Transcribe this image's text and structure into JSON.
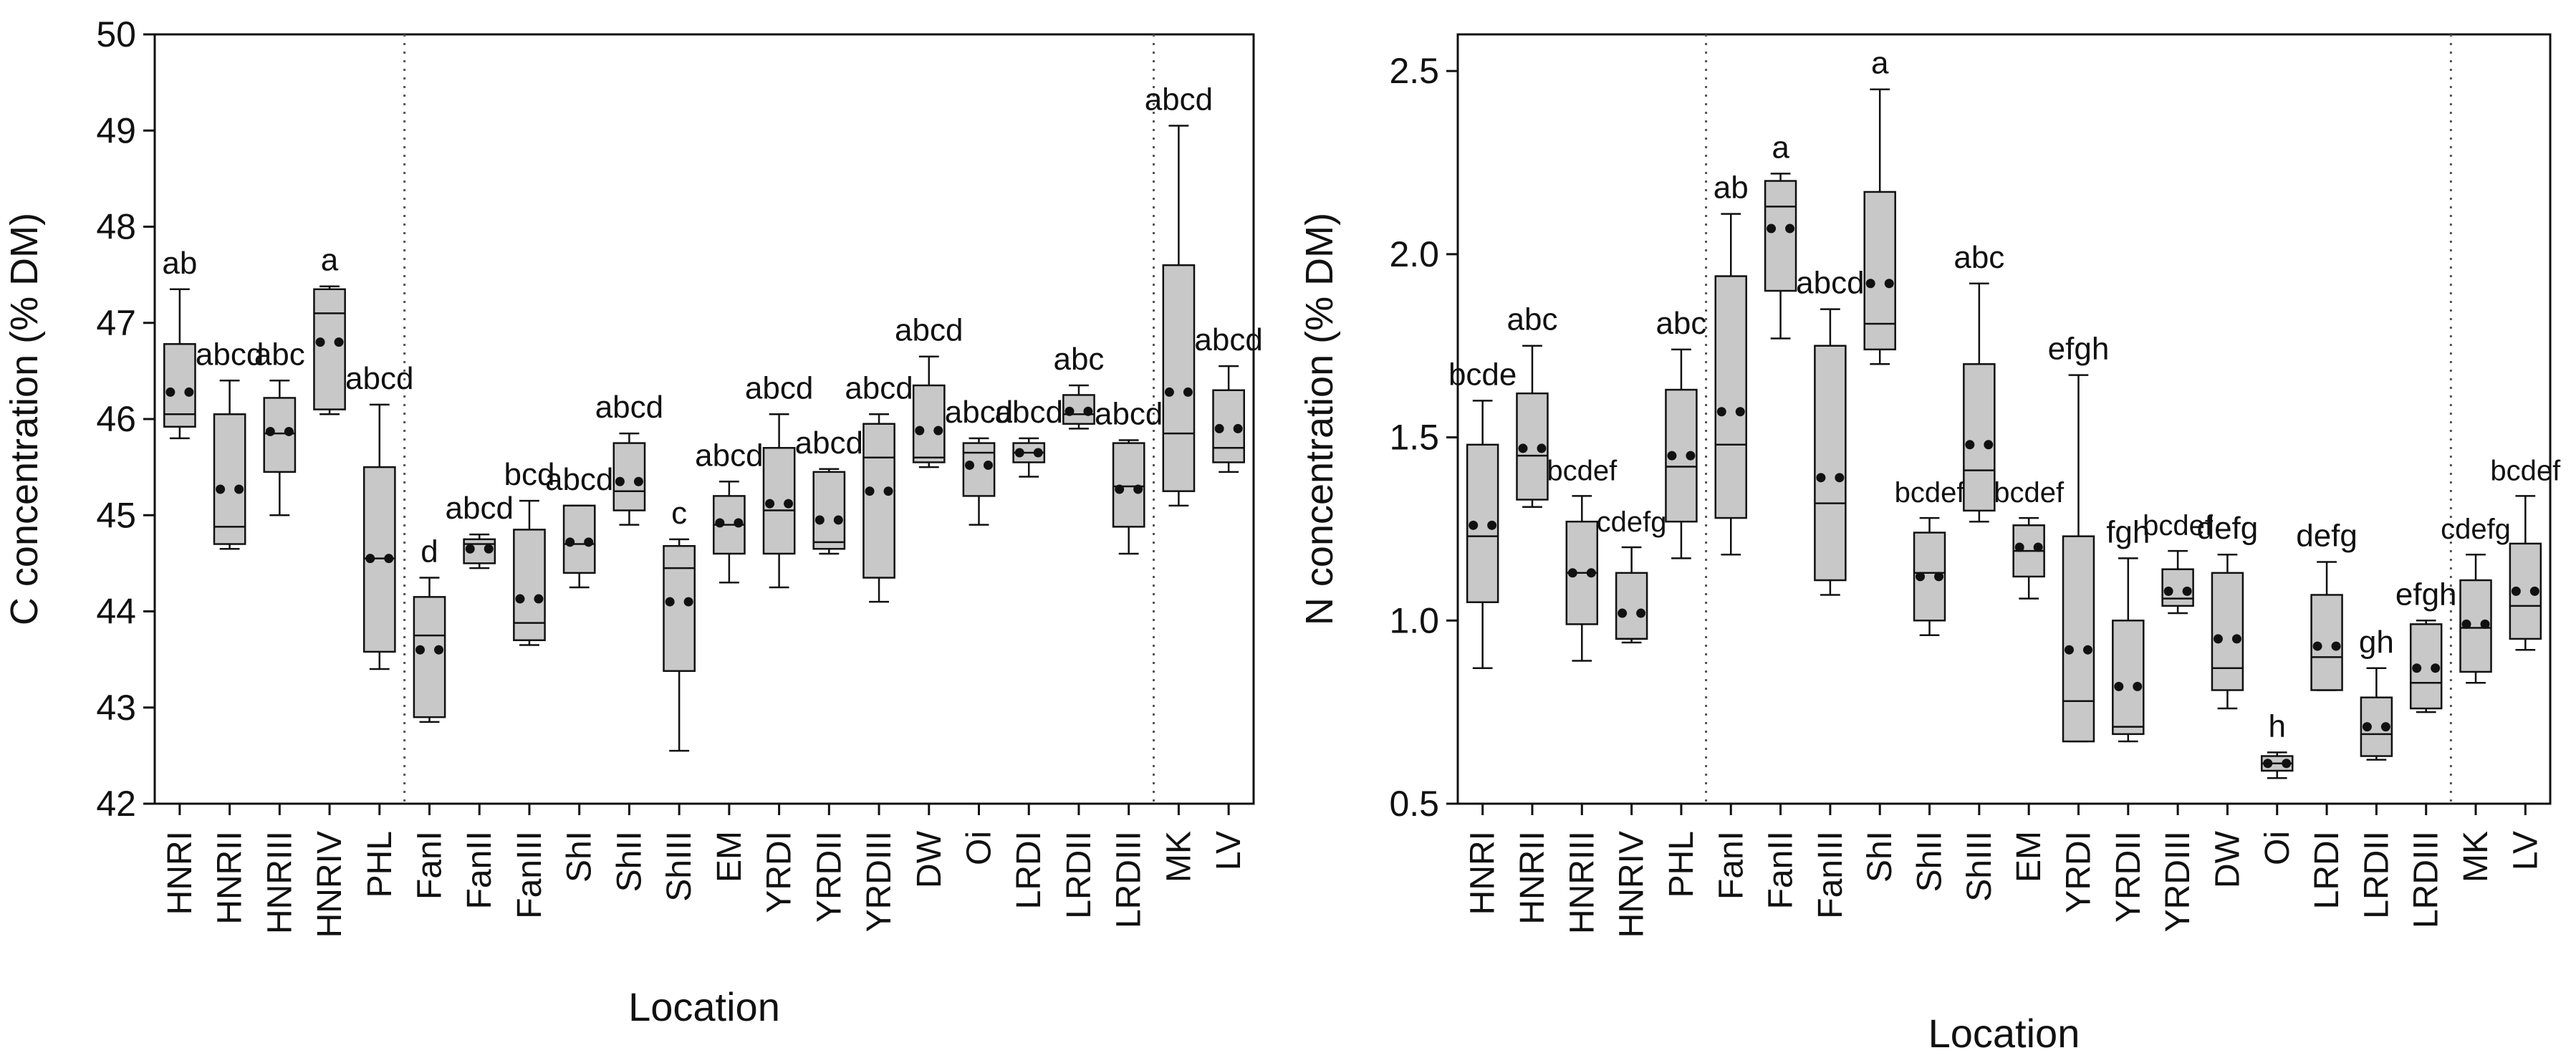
{
  "style": {
    "box_fill": "#c8c8c8",
    "line_color": "#111111",
    "divider_color": "#555555"
  },
  "chart_data": [
    {
      "type": "box",
      "title": "",
      "xlabel": "Location",
      "ylabel": "C concentration (% DM)",
      "ylim": [
        42,
        50
      ],
      "yticks": [
        "42",
        "43",
        "44",
        "45",
        "46",
        "47",
        "48",
        "49",
        "50"
      ],
      "divider_after": [
        5,
        20
      ],
      "categories": [
        "HNRI",
        "HNRII",
        "HNRIII",
        "HNRIV",
        "PHL",
        "FanI",
        "FanII",
        "FanIII",
        "ShI",
        "ShII",
        "ShIII",
        "EM",
        "YRDI",
        "YRDII",
        "YRDIII",
        "DW",
        "Oi",
        "LRDI",
        "LRDII",
        "LRDIII",
        "MK",
        "LV"
      ],
      "letters": [
        "ab",
        "abcd",
        "abc",
        "a",
        "abcd",
        "d",
        "abcd",
        "bcd",
        "abcd",
        "abcd",
        "c",
        "abcd",
        "abcd",
        "abcd",
        "abcd",
        "abcd",
        "abcd",
        "abcd",
        "abc",
        "abcd",
        "abcd",
        "abcd"
      ],
      "boxes": [
        {
          "min": 45.8,
          "q1": 45.92,
          "median": 46.05,
          "q3": 46.78,
          "max": 47.35,
          "mean": 46.28
        },
        {
          "min": 44.65,
          "q1": 44.7,
          "median": 44.88,
          "q3": 46.05,
          "max": 46.4,
          "mean": 45.27
        },
        {
          "min": 45.0,
          "q1": 45.45,
          "median": 45.85,
          "q3": 46.22,
          "max": 46.4,
          "mean": 45.87
        },
        {
          "min": 46.05,
          "q1": 46.1,
          "median": 47.1,
          "q3": 47.35,
          "max": 47.38,
          "mean": 46.8
        },
        {
          "min": 43.4,
          "q1": 43.58,
          "median": 44.55,
          "q3": 45.5,
          "max": 46.15,
          "mean": 44.55
        },
        {
          "min": 42.85,
          "q1": 42.9,
          "median": 43.75,
          "q3": 44.15,
          "max": 44.35,
          "mean": 43.6
        },
        {
          "min": 44.45,
          "q1": 44.5,
          "median": 44.7,
          "q3": 44.75,
          "max": 44.8,
          "mean": 44.65
        },
        {
          "min": 43.65,
          "q1": 43.7,
          "median": 43.88,
          "q3": 44.85,
          "max": 45.15,
          "mean": 44.13
        },
        {
          "min": 44.25,
          "q1": 44.4,
          "median": 44.7,
          "q3": 45.1,
          "max": 45.1,
          "mean": 44.72
        },
        {
          "min": 44.9,
          "q1": 45.05,
          "median": 45.25,
          "q3": 45.75,
          "max": 45.85,
          "mean": 45.35
        },
        {
          "min": 42.55,
          "q1": 43.38,
          "median": 44.45,
          "q3": 44.68,
          "max": 44.75,
          "mean": 44.1
        },
        {
          "min": 44.3,
          "q1": 44.6,
          "median": 44.9,
          "q3": 45.2,
          "max": 45.35,
          "mean": 44.92
        },
        {
          "min": 44.25,
          "q1": 44.6,
          "median": 45.05,
          "q3": 45.7,
          "max": 46.05,
          "mean": 45.12
        },
        {
          "min": 44.6,
          "q1": 44.65,
          "median": 44.72,
          "q3": 45.45,
          "max": 45.48,
          "mean": 44.95
        },
        {
          "min": 44.1,
          "q1": 44.35,
          "median": 45.6,
          "q3": 45.95,
          "max": 46.05,
          "mean": 45.25
        },
        {
          "min": 45.5,
          "q1": 45.55,
          "median": 45.6,
          "q3": 46.35,
          "max": 46.65,
          "mean": 45.88
        },
        {
          "min": 44.9,
          "q1": 45.2,
          "median": 45.65,
          "q3": 45.75,
          "max": 45.8,
          "mean": 45.52
        },
        {
          "min": 45.4,
          "q1": 45.55,
          "median": 45.65,
          "q3": 45.75,
          "max": 45.8,
          "mean": 45.65
        },
        {
          "min": 45.9,
          "q1": 45.95,
          "median": 46.05,
          "q3": 46.25,
          "max": 46.35,
          "mean": 46.08
        },
        {
          "min": 44.6,
          "q1": 44.88,
          "median": 45.3,
          "q3": 45.75,
          "max": 45.78,
          "mean": 45.27
        },
        {
          "min": 45.1,
          "q1": 45.25,
          "median": 45.85,
          "q3": 47.6,
          "max": 49.05,
          "mean": 46.28
        },
        {
          "min": 45.45,
          "q1": 45.55,
          "median": 45.7,
          "q3": 46.3,
          "max": 46.55,
          "mean": 45.9
        }
      ]
    },
    {
      "type": "box",
      "title": "",
      "xlabel": "Location",
      "ylabel": "N concentration (% DM)",
      "ylim": [
        0.5,
        2.6
      ],
      "yticks": [
        "0.5",
        "1.0",
        "1.5",
        "2.0",
        "2.5"
      ],
      "divider_after": [
        5,
        20
      ],
      "categories": [
        "HNRI",
        "HNRII",
        "HNRIII",
        "HNRIV",
        "PHL",
        "FanI",
        "FanII",
        "FanIII",
        "ShI",
        "ShII",
        "ShIII",
        "EM",
        "YRDI",
        "YRDII",
        "YRDIII",
        "DW",
        "Oi",
        "LRDI",
        "LRDII",
        "LRDIII",
        "MK",
        "LV"
      ],
      "letters": [
        "bcde",
        "abc",
        "bcdef",
        "cdefg",
        "abc",
        "ab",
        "a",
        "abcd",
        "a",
        "bcdef",
        "abc",
        "bcdef",
        "efgh",
        "fgh",
        "bcdef",
        "defg",
        "h",
        "defg",
        "gh",
        "efgh",
        "cdefg",
        "bcdef"
      ],
      "boxes": [
        {
          "min": 0.87,
          "q1": 1.05,
          "median": 1.23,
          "q3": 1.48,
          "max": 1.6,
          "mean": 1.26
        },
        {
          "min": 1.31,
          "q1": 1.33,
          "median": 1.45,
          "q3": 1.62,
          "max": 1.75,
          "mean": 1.47
        },
        {
          "min": 0.89,
          "q1": 0.99,
          "median": 1.13,
          "q3": 1.27,
          "max": 1.34,
          "mean": 1.13
        },
        {
          "min": 0.94,
          "q1": 0.95,
          "median": 0.95,
          "q3": 1.13,
          "max": 1.2,
          "mean": 1.02
        },
        {
          "min": 1.17,
          "q1": 1.27,
          "median": 1.42,
          "q3": 1.63,
          "max": 1.74,
          "mean": 1.45
        },
        {
          "min": 1.18,
          "q1": 1.28,
          "median": 1.48,
          "q3": 1.94,
          "max": 2.11,
          "mean": 1.57
        },
        {
          "min": 1.77,
          "q1": 1.9,
          "median": 2.13,
          "q3": 2.2,
          "max": 2.22,
          "mean": 2.07
        },
        {
          "min": 1.07,
          "q1": 1.11,
          "median": 1.32,
          "q3": 1.75,
          "max": 1.85,
          "mean": 1.39
        },
        {
          "min": 1.7,
          "q1": 1.74,
          "median": 1.81,
          "q3": 2.17,
          "max": 2.45,
          "mean": 1.92
        },
        {
          "min": 0.96,
          "q1": 1.0,
          "median": 1.13,
          "q3": 1.24,
          "max": 1.28,
          "mean": 1.12
        },
        {
          "min": 1.27,
          "q1": 1.3,
          "median": 1.41,
          "q3": 1.7,
          "max": 1.92,
          "mean": 1.48
        },
        {
          "min": 1.06,
          "q1": 1.12,
          "median": 1.19,
          "q3": 1.26,
          "max": 1.28,
          "mean": 1.2
        },
        {
          "min": 0.67,
          "q1": 0.67,
          "median": 0.78,
          "q3": 1.23,
          "max": 1.67,
          "mean": 0.92
        },
        {
          "min": 0.67,
          "q1": 0.69,
          "median": 0.71,
          "q3": 1.0,
          "max": 1.17,
          "mean": 0.82
        },
        {
          "min": 1.02,
          "q1": 1.04,
          "median": 1.06,
          "q3": 1.14,
          "max": 1.19,
          "mean": 1.08
        },
        {
          "min": 0.76,
          "q1": 0.81,
          "median": 0.87,
          "q3": 1.13,
          "max": 1.18,
          "mean": 0.95
        },
        {
          "min": 0.57,
          "q1": 0.59,
          "median": 0.61,
          "q3": 0.63,
          "max": 0.64,
          "mean": 0.61
        },
        {
          "min": 0.81,
          "q1": 0.81,
          "median": 0.9,
          "q3": 1.07,
          "max": 1.16,
          "mean": 0.93
        },
        {
          "min": 0.62,
          "q1": 0.63,
          "median": 0.69,
          "q3": 0.79,
          "max": 0.87,
          "mean": 0.71
        },
        {
          "min": 0.75,
          "q1": 0.76,
          "median": 0.83,
          "q3": 0.99,
          "max": 1.0,
          "mean": 0.87
        },
        {
          "min": 0.83,
          "q1": 0.86,
          "median": 0.98,
          "q3": 1.11,
          "max": 1.18,
          "mean": 0.99
        },
        {
          "min": 0.92,
          "q1": 0.95,
          "median": 1.04,
          "q3": 1.21,
          "max": 1.34,
          "mean": 1.08
        }
      ]
    }
  ]
}
